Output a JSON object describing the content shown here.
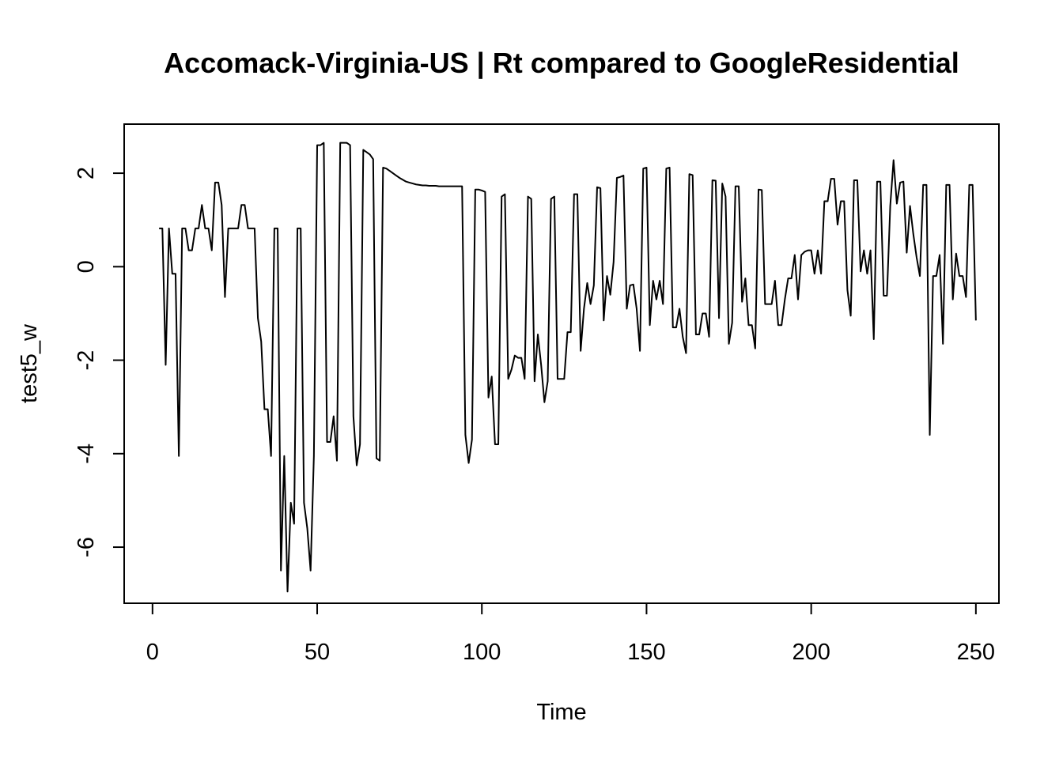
{
  "chart_data": {
    "type": "line",
    "title": "Accomack-Virginia-US | Rt compared to GoogleResidential",
    "xlabel": "Time",
    "ylabel": "test5_w",
    "xlim": [
      -8.6,
      257
    ],
    "ylim": [
      -7.2,
      3.05
    ],
    "xticks": [
      0,
      50,
      100,
      150,
      200,
      250
    ],
    "yticks": [
      -6,
      -4,
      -2,
      0,
      2
    ],
    "grid": false,
    "series": [
      {
        "values": [
          [
            2,
            0.82
          ],
          [
            3,
            0.82
          ],
          [
            4,
            -2.1
          ],
          [
            5,
            0.82
          ],
          [
            6,
            -0.15
          ],
          [
            7,
            -0.15
          ],
          [
            8,
            -4.05
          ],
          [
            9,
            0.82
          ],
          [
            10,
            0.82
          ],
          [
            11,
            0.35
          ],
          [
            12,
            0.35
          ],
          [
            13,
            0.82
          ],
          [
            14,
            0.82
          ],
          [
            15,
            1.32
          ],
          [
            16,
            0.82
          ],
          [
            17,
            0.82
          ],
          [
            18,
            0.35
          ],
          [
            19,
            1.8
          ],
          [
            20,
            1.8
          ],
          [
            21,
            1.32
          ],
          [
            22,
            -0.65
          ],
          [
            23,
            0.82
          ],
          [
            24,
            0.82
          ],
          [
            25,
            0.82
          ],
          [
            26,
            0.82
          ],
          [
            27,
            1.32
          ],
          [
            28,
            1.32
          ],
          [
            29,
            0.82
          ],
          [
            30,
            0.82
          ],
          [
            31,
            0.82
          ],
          [
            32,
            -1.1
          ],
          [
            33,
            -1.6
          ],
          [
            34,
            -3.05
          ],
          [
            35,
            -3.05
          ],
          [
            36,
            -4.05
          ],
          [
            37,
            0.82
          ],
          [
            38,
            0.82
          ],
          [
            39,
            -6.5
          ],
          [
            40,
            -4.05
          ],
          [
            41,
            -6.95
          ],
          [
            42,
            -5.05
          ],
          [
            43,
            -5.5
          ],
          [
            44,
            0.82
          ],
          [
            45,
            0.82
          ],
          [
            46,
            -5.05
          ],
          [
            47,
            -5.6
          ],
          [
            48,
            -6.5
          ],
          [
            49,
            -4.05
          ],
          [
            50,
            2.6
          ],
          [
            51,
            2.6
          ],
          [
            52,
            2.65
          ],
          [
            53,
            -3.75
          ],
          [
            54,
            -3.75
          ],
          [
            55,
            -3.2
          ],
          [
            56,
            -4.15
          ],
          [
            57,
            2.65
          ],
          [
            58,
            2.65
          ],
          [
            59,
            2.65
          ],
          [
            60,
            2.6
          ],
          [
            61,
            -3.2
          ],
          [
            62,
            -4.25
          ],
          [
            63,
            -3.8
          ],
          [
            64,
            2.5
          ],
          [
            65,
            2.45
          ],
          [
            66,
            2.4
          ],
          [
            67,
            2.3
          ],
          [
            68,
            -4.1
          ],
          [
            69,
            -4.15
          ],
          [
            70,
            2.12
          ],
          [
            71,
            2.1
          ],
          [
            72,
            2.05
          ],
          [
            73,
            2.0
          ],
          [
            74,
            1.95
          ],
          [
            75,
            1.9
          ],
          [
            76,
            1.86
          ],
          [
            77,
            1.82
          ],
          [
            78,
            1.8
          ],
          [
            79,
            1.78
          ],
          [
            80,
            1.76
          ],
          [
            81,
            1.75
          ],
          [
            82,
            1.74
          ],
          [
            83,
            1.74
          ],
          [
            84,
            1.73
          ],
          [
            85,
            1.73
          ],
          [
            86,
            1.73
          ],
          [
            87,
            1.72
          ],
          [
            88,
            1.72
          ],
          [
            89,
            1.72
          ],
          [
            90,
            1.72
          ],
          [
            91,
            1.72
          ],
          [
            92,
            1.72
          ],
          [
            93,
            1.72
          ],
          [
            94,
            1.72
          ],
          [
            95,
            -3.6
          ],
          [
            96,
            -4.2
          ],
          [
            97,
            -3.7
          ],
          [
            98,
            1.65
          ],
          [
            99,
            1.65
          ],
          [
            100,
            1.63
          ],
          [
            101,
            1.6
          ],
          [
            102,
            -2.8
          ],
          [
            103,
            -2.35
          ],
          [
            104,
            -3.8
          ],
          [
            105,
            -3.8
          ],
          [
            106,
            1.5
          ],
          [
            107,
            1.55
          ],
          [
            108,
            -2.4
          ],
          [
            109,
            -2.2
          ],
          [
            110,
            -1.9
          ],
          [
            111,
            -1.95
          ],
          [
            112,
            -1.95
          ],
          [
            113,
            -2.4
          ],
          [
            114,
            1.5
          ],
          [
            115,
            1.45
          ],
          [
            116,
            -2.45
          ],
          [
            117,
            -1.45
          ],
          [
            118,
            -2.1
          ],
          [
            119,
            -2.9
          ],
          [
            120,
            -2.45
          ],
          [
            121,
            1.45
          ],
          [
            122,
            1.5
          ],
          [
            123,
            -2.4
          ],
          [
            124,
            -2.4
          ],
          [
            125,
            -2.4
          ],
          [
            126,
            -1.4
          ],
          [
            127,
            -1.4
          ],
          [
            128,
            1.55
          ],
          [
            129,
            1.55
          ],
          [
            130,
            -1.8
          ],
          [
            131,
            -0.9
          ],
          [
            132,
            -0.35
          ],
          [
            133,
            -0.8
          ],
          [
            134,
            -0.4
          ],
          [
            135,
            1.7
          ],
          [
            136,
            1.68
          ],
          [
            137,
            -1.15
          ],
          [
            138,
            -0.2
          ],
          [
            139,
            -0.6
          ],
          [
            140,
            0.1
          ],
          [
            141,
            1.9
          ],
          [
            142,
            1.92
          ],
          [
            143,
            1.95
          ],
          [
            144,
            -0.9
          ],
          [
            145,
            -0.4
          ],
          [
            146,
            -0.38
          ],
          [
            147,
            -0.9
          ],
          [
            148,
            -1.8
          ],
          [
            149,
            2.1
          ],
          [
            150,
            2.12
          ],
          [
            151,
            -1.25
          ],
          [
            152,
            -0.3
          ],
          [
            153,
            -0.7
          ],
          [
            154,
            -0.3
          ],
          [
            155,
            -0.8
          ],
          [
            156,
            2.1
          ],
          [
            157,
            2.12
          ],
          [
            158,
            -1.3
          ],
          [
            159,
            -1.3
          ],
          [
            160,
            -0.9
          ],
          [
            161,
            -1.5
          ],
          [
            162,
            -1.85
          ],
          [
            163,
            1.98
          ],
          [
            164,
            1.96
          ],
          [
            165,
            -1.45
          ],
          [
            166,
            -1.45
          ],
          [
            167,
            -1.0
          ],
          [
            168,
            -1.0
          ],
          [
            169,
            -1.5
          ],
          [
            170,
            1.85
          ],
          [
            171,
            1.84
          ],
          [
            172,
            -1.1
          ],
          [
            173,
            1.78
          ],
          [
            174,
            1.5
          ],
          [
            175,
            -1.65
          ],
          [
            176,
            -1.2
          ],
          [
            177,
            1.72
          ],
          [
            178,
            1.72
          ],
          [
            179,
            -0.75
          ],
          [
            180,
            -0.25
          ],
          [
            181,
            -1.25
          ],
          [
            182,
            -1.25
          ],
          [
            183,
            -1.75
          ],
          [
            184,
            1.65
          ],
          [
            185,
            1.64
          ],
          [
            186,
            -0.8
          ],
          [
            187,
            -0.8
          ],
          [
            188,
            -0.8
          ],
          [
            189,
            -0.3
          ],
          [
            190,
            -1.25
          ],
          [
            191,
            -1.25
          ],
          [
            192,
            -0.7
          ],
          [
            193,
            -0.25
          ],
          [
            194,
            -0.25
          ],
          [
            195,
            0.25
          ],
          [
            196,
            -0.7
          ],
          [
            197,
            0.25
          ],
          [
            198,
            0.32
          ],
          [
            199,
            0.35
          ],
          [
            200,
            0.35
          ],
          [
            201,
            -0.15
          ],
          [
            202,
            0.35
          ],
          [
            203,
            -0.15
          ],
          [
            204,
            1.4
          ],
          [
            205,
            1.4
          ],
          [
            206,
            1.88
          ],
          [
            207,
            1.88
          ],
          [
            208,
            0.9
          ],
          [
            209,
            1.4
          ],
          [
            210,
            1.4
          ],
          [
            211,
            -0.5
          ],
          [
            212,
            -1.05
          ],
          [
            213,
            1.85
          ],
          [
            214,
            1.85
          ],
          [
            215,
            -0.1
          ],
          [
            216,
            0.35
          ],
          [
            217,
            -0.15
          ],
          [
            218,
            0.35
          ],
          [
            219,
            -1.55
          ],
          [
            220,
            1.82
          ],
          [
            221,
            1.82
          ],
          [
            222,
            -0.62
          ],
          [
            223,
            -0.62
          ],
          [
            224,
            1.3
          ],
          [
            225,
            2.28
          ],
          [
            226,
            1.35
          ],
          [
            227,
            1.8
          ],
          [
            228,
            1.82
          ],
          [
            229,
            0.3
          ],
          [
            230,
            1.3
          ],
          [
            231,
            0.7
          ],
          [
            232,
            0.2
          ],
          [
            233,
            -0.2
          ],
          [
            234,
            1.75
          ],
          [
            235,
            1.75
          ],
          [
            236,
            -3.6
          ],
          [
            237,
            -0.2
          ],
          [
            238,
            -0.2
          ],
          [
            239,
            0.25
          ],
          [
            240,
            -1.65
          ],
          [
            241,
            1.75
          ],
          [
            242,
            1.75
          ],
          [
            243,
            -0.7
          ],
          [
            244,
            0.28
          ],
          [
            245,
            -0.2
          ],
          [
            246,
            -0.2
          ],
          [
            247,
            -0.65
          ],
          [
            248,
            1.75
          ],
          [
            249,
            1.75
          ],
          [
            250,
            -1.15
          ]
        ]
      }
    ]
  }
}
